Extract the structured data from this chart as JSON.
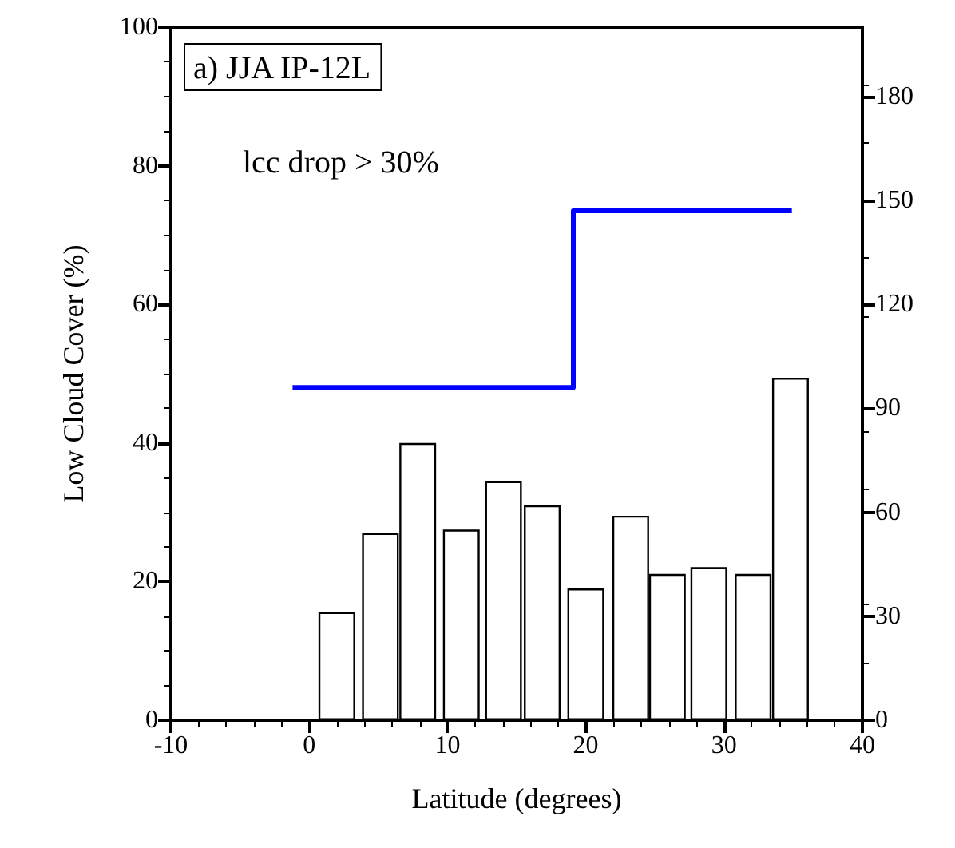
{
  "chart_data": {
    "type": "bar",
    "xlabel": "Latitude (degrees)",
    "ylabel": "Low Cloud Cover (%)",
    "annotations": [
      "a) JJA IP-12L",
      "lcc drop > 30%"
    ],
    "x": [
      2.0,
      5.15,
      7.85,
      11.0,
      14.05,
      16.85,
      20.0,
      23.25,
      25.9,
      28.9,
      32.1,
      34.8
    ],
    "series": [
      {
        "color": "#ffffff",
        "values": [
          15.6,
          27.0,
          40.0,
          27.5,
          34.5,
          31.0,
          19.0,
          29.5,
          21.1,
          22.1,
          21.1,
          49.4
        ]
      },
      {
        "type": "line",
        "axis": "y2",
        "color": "#0000ff",
        "x": [
          -1.2,
          19.1,
          19.1,
          34.9
        ],
        "values": [
          96,
          96,
          147,
          147
        ]
      }
    ],
    "xlim": [
      -10,
      40
    ],
    "xticks": [
      -10,
      0,
      10,
      20,
      30,
      40
    ],
    "ylim": [
      0,
      100
    ],
    "yticks": [
      0,
      20,
      40,
      60,
      80,
      100
    ],
    "y2lim": [
      0,
      200
    ],
    "y2ticks": [
      0,
      30,
      60,
      90,
      120,
      150,
      180
    ],
    "grid": false,
    "marker": "none",
    "line_style": "solid"
  }
}
